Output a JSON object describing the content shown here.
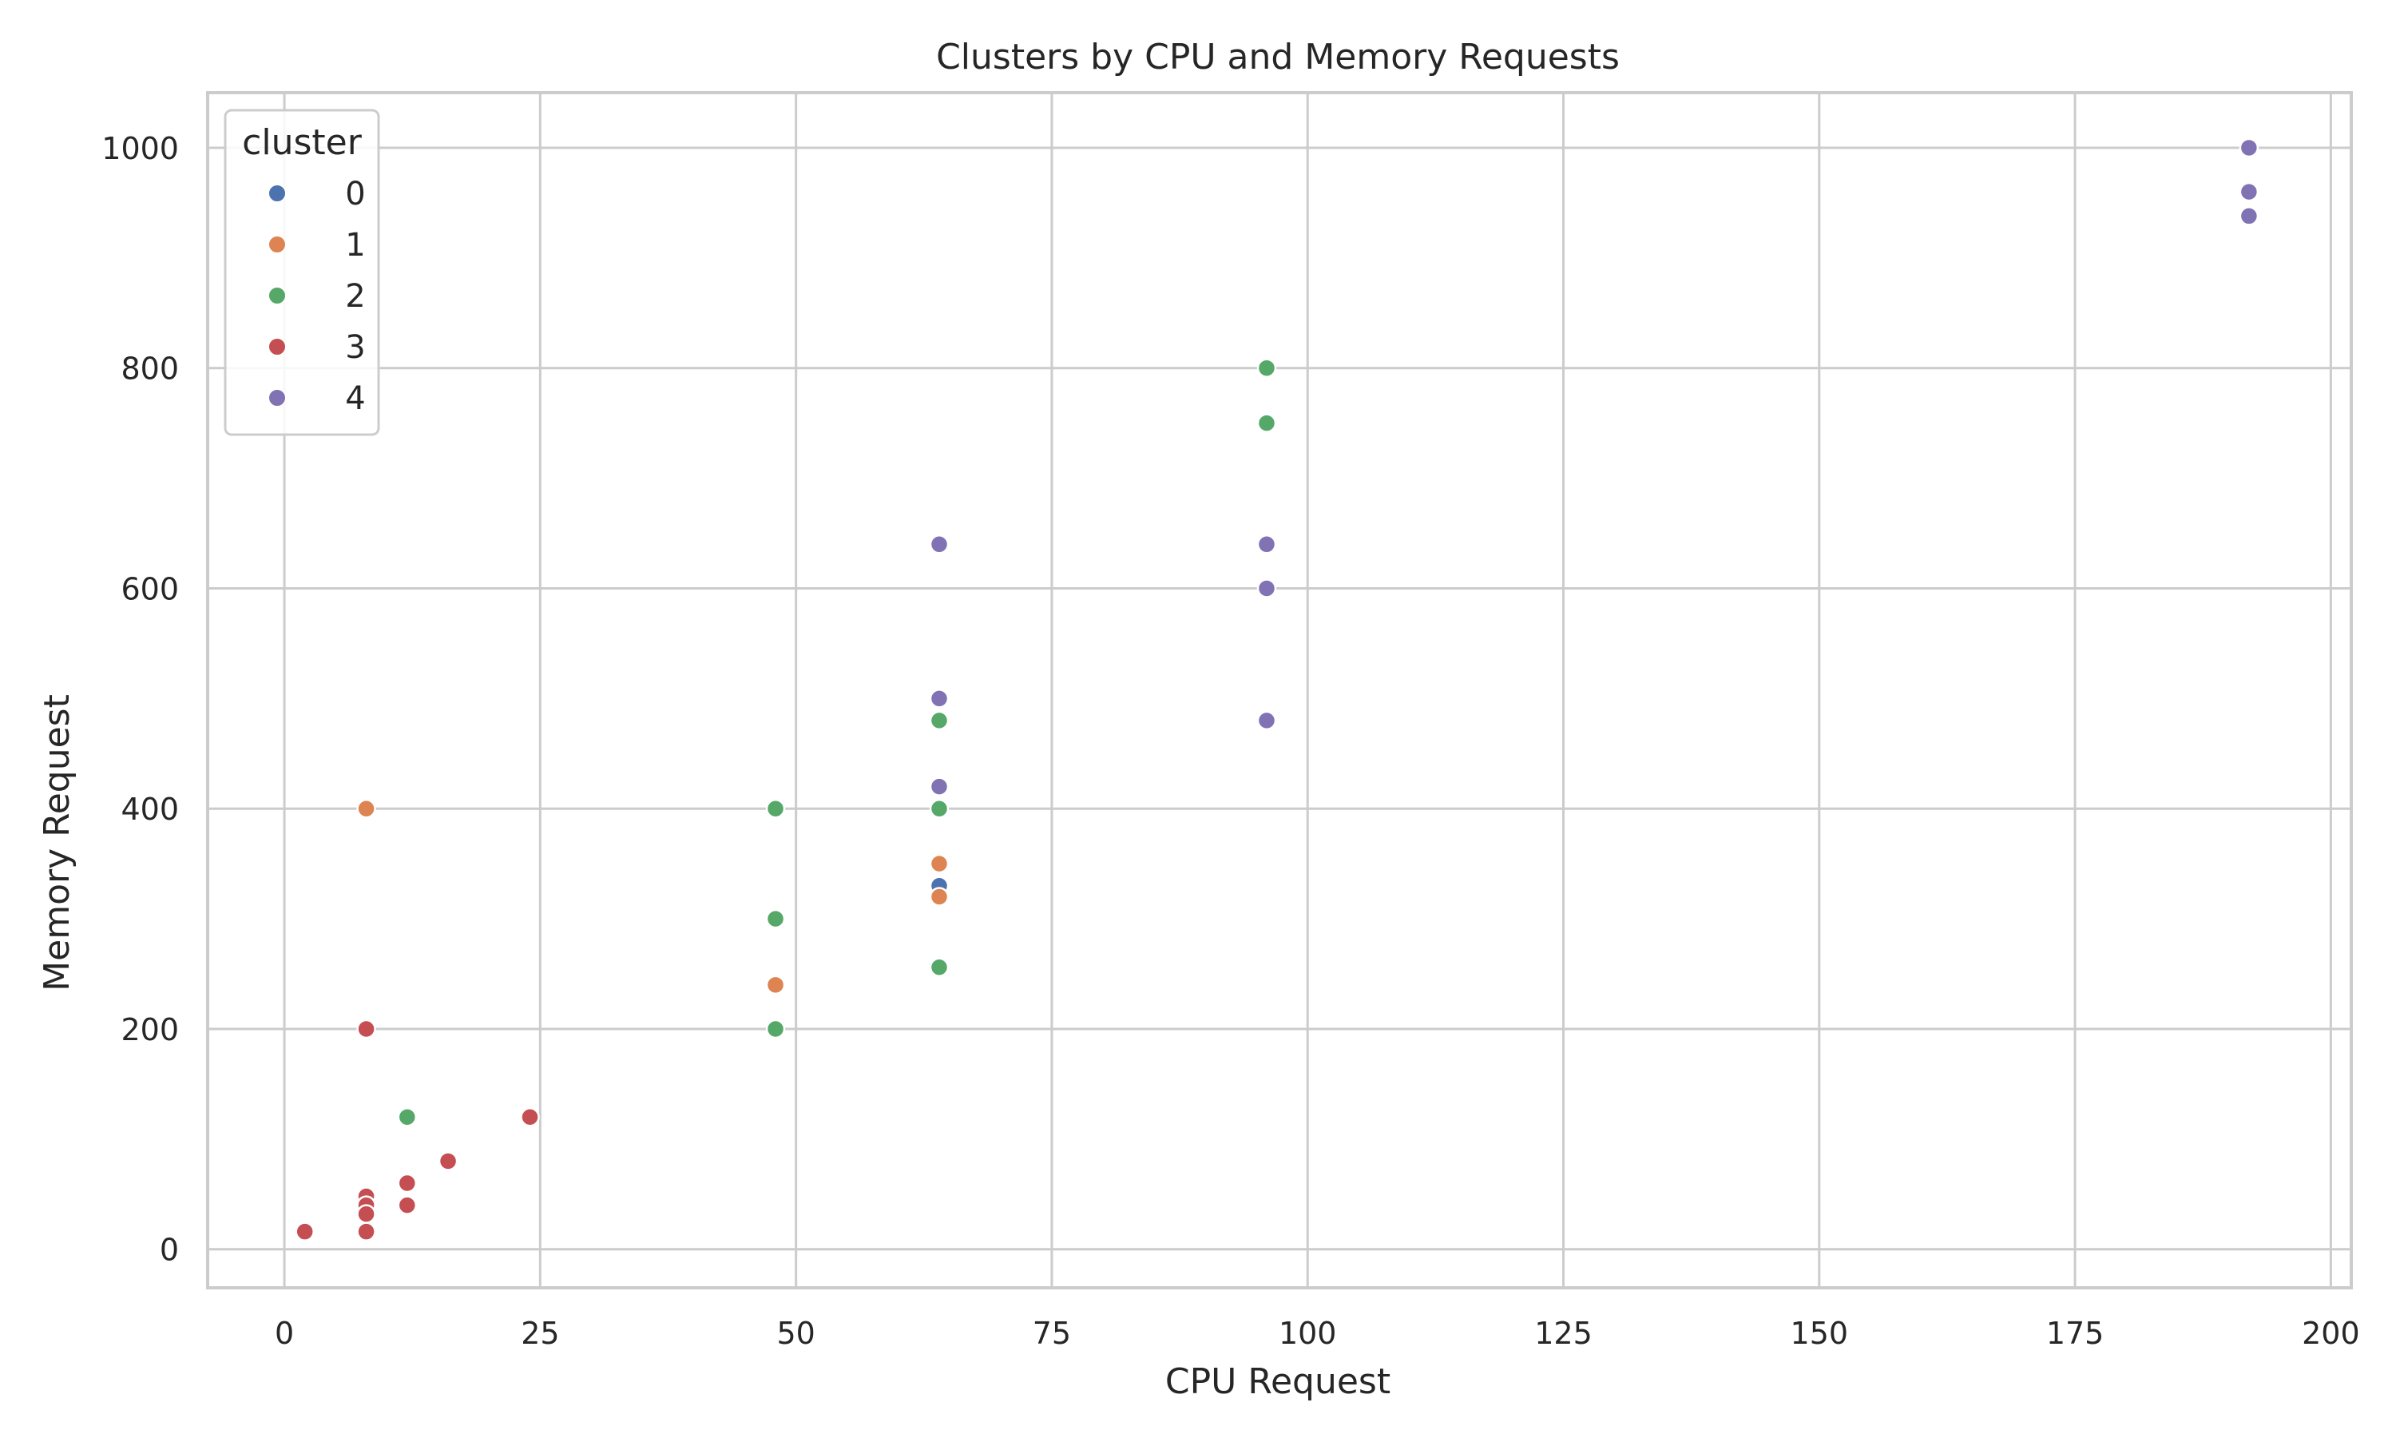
{
  "chart_data": {
    "type": "scatter",
    "title": "Clusters by CPU and Memory Requests",
    "xlabel": "CPU Request",
    "ylabel": "Memory Request",
    "xlim": [
      -7.5,
      202
    ],
    "ylim": [
      -35,
      1050
    ],
    "xticks": [
      0,
      25,
      50,
      75,
      100,
      125,
      150,
      175,
      200
    ],
    "yticks": [
      0,
      200,
      400,
      600,
      800,
      1000
    ],
    "grid": true,
    "legend": {
      "title": "cluster",
      "placement": "top-left"
    },
    "series": [
      {
        "name": "0",
        "color": "#4c72b0",
        "points": [
          [
            64,
            330
          ]
        ]
      },
      {
        "name": "1",
        "color": "#dd8452",
        "points": [
          [
            8,
            400
          ],
          [
            48,
            240
          ],
          [
            64,
            350
          ],
          [
            64,
            320
          ]
        ]
      },
      {
        "name": "2",
        "color": "#55a868",
        "points": [
          [
            12,
            120
          ],
          [
            48,
            400
          ],
          [
            48,
            300
          ],
          [
            48,
            200
          ],
          [
            64,
            480
          ],
          [
            64,
            400
          ],
          [
            64,
            256
          ],
          [
            96,
            800
          ],
          [
            96,
            750
          ]
        ]
      },
      {
        "name": "3",
        "color": "#c44e52",
        "points": [
          [
            2,
            16
          ],
          [
            8,
            200
          ],
          [
            8,
            48
          ],
          [
            8,
            40
          ],
          [
            8,
            32
          ],
          [
            8,
            16
          ],
          [
            12,
            60
          ],
          [
            12,
            40
          ],
          [
            16,
            80
          ],
          [
            24,
            120
          ]
        ]
      },
      {
        "name": "4",
        "color": "#8172b3",
        "points": [
          [
            64,
            640
          ],
          [
            64,
            500
          ],
          [
            64,
            420
          ],
          [
            96,
            640
          ],
          [
            96,
            600
          ],
          [
            96,
            480
          ],
          [
            192,
            1000
          ],
          [
            192,
            960
          ],
          [
            192,
            938
          ]
        ]
      }
    ]
  }
}
